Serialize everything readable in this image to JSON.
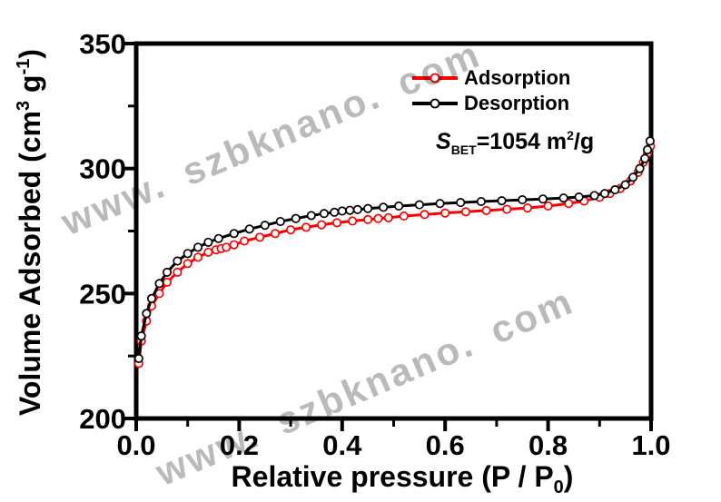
{
  "figure": {
    "colors": {
      "background": "#ffffff",
      "axis": "#000000",
      "adsorption": "#ff0000",
      "desorption": "#000000",
      "watermark": "#b1b1b1"
    },
    "legend": {
      "items": [
        {
          "label": "Adsorption",
          "color": "#ff0000",
          "marker": "open-circle-on-line"
        },
        {
          "label": "Desorption",
          "color": "#000000",
          "marker": "open-circle-on-line"
        }
      ]
    },
    "annotation": {
      "s": "S",
      "sub": "BET",
      "mid": "=1054 m",
      "sup": "2",
      "post": "/g"
    },
    "watermarks": [
      {
        "text": "www. szbknano. com"
      },
      {
        "text": "www. szbknano. com"
      }
    ]
  },
  "chart_data": {
    "type": "line",
    "title": "",
    "xlabel_parts": {
      "main": "Relative pressure (P / P",
      "sub": "0",
      "close": ")"
    },
    "ylabel_parts": {
      "pre": "Volume Adsorbed (cm",
      "sup1": "3",
      "mid": " g",
      "sup2": "-1",
      "close": ")"
    },
    "xlim": [
      0.0,
      1.0
    ],
    "ylim": [
      200,
      350
    ],
    "grid": false,
    "legend_position": "upper-right-inside",
    "x_major_ticks": [
      0.0,
      0.2,
      0.4,
      0.6,
      0.8,
      1.0
    ],
    "x_tick_labels": [
      "0.0",
      "0.2",
      "0.4",
      "0.6",
      "0.8",
      "1.0"
    ],
    "x_minor_ticks": [
      0.1,
      0.3,
      0.5,
      0.7,
      0.9
    ],
    "y_major_ticks": [
      200,
      250,
      300,
      350
    ],
    "y_tick_labels": [
      "200",
      "250",
      "300",
      "350"
    ],
    "y_minor_ticks": [
      225,
      275,
      325
    ],
    "series": [
      {
        "name": "Adsorption",
        "color": "#ff0000",
        "marker": "open-circle",
        "x": [
          0.005,
          0.01,
          0.02,
          0.03,
          0.045,
          0.06,
          0.08,
          0.1,
          0.12,
          0.14,
          0.155,
          0.165,
          0.175,
          0.19,
          0.21,
          0.24,
          0.27,
          0.3,
          0.33,
          0.36,
          0.39,
          0.42,
          0.45,
          0.47,
          0.49,
          0.52,
          0.56,
          0.6,
          0.64,
          0.68,
          0.72,
          0.76,
          0.8,
          0.84,
          0.87,
          0.9,
          0.92,
          0.94,
          0.96,
          0.975,
          0.985,
          0.993,
          0.999
        ],
        "y": [
          222,
          231,
          239,
          245,
          250,
          254.5,
          258.5,
          262,
          264.5,
          266.5,
          267.5,
          268,
          268.5,
          269.5,
          271,
          272.5,
          274,
          275.5,
          276.5,
          277.5,
          278.3,
          279,
          279.6,
          280,
          280.3,
          281,
          281.6,
          282.2,
          282.7,
          283.2,
          283.7,
          284.2,
          285,
          286,
          287,
          288.5,
          290,
          292,
          295,
          298.5,
          302.5,
          306,
          309
        ]
      },
      {
        "name": "Desorption",
        "color": "#000000",
        "marker": "open-circle",
        "x": [
          0.005,
          0.01,
          0.02,
          0.03,
          0.045,
          0.06,
          0.08,
          0.1,
          0.12,
          0.14,
          0.16,
          0.19,
          0.22,
          0.25,
          0.28,
          0.31,
          0.34,
          0.365,
          0.385,
          0.4,
          0.415,
          0.43,
          0.45,
          0.48,
          0.51,
          0.55,
          0.59,
          0.63,
          0.67,
          0.71,
          0.75,
          0.79,
          0.83,
          0.86,
          0.89,
          0.91,
          0.93,
          0.95,
          0.965,
          0.978,
          0.988,
          0.993,
          0.998
        ],
        "y": [
          224,
          233,
          242,
          248,
          254,
          258.5,
          263,
          266,
          268.5,
          270.5,
          272,
          274,
          275.8,
          277.3,
          278.8,
          280,
          281.2,
          282,
          282.5,
          283,
          283.3,
          283.6,
          284,
          284.5,
          285,
          285.5,
          286,
          286.4,
          286.8,
          287.1,
          287.5,
          287.8,
          288.2,
          288.6,
          289.2,
          290,
          291.5,
          293.5,
          296.5,
          300,
          304,
          307.5,
          311
        ]
      }
    ],
    "annotation_text": "S_BET=1054 m2/g"
  }
}
